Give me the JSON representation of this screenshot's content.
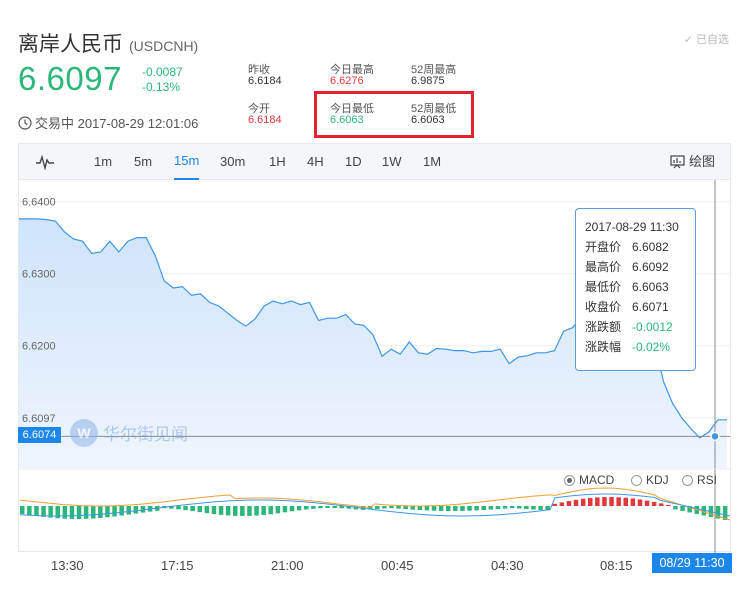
{
  "header": {
    "name": "离岸人民币",
    "code": "(USDCNH)",
    "price": "6.6097",
    "change": "-0.0087",
    "change_pct": "-0.13%",
    "status": "交易中 2017-08-29 12:01:06",
    "self_select": "已自选"
  },
  "stats": {
    "prev_close_label": "昨收",
    "prev_close": "6.6184",
    "open_label": "今开",
    "open": "6.6184",
    "day_high_label": "今日最高",
    "day_high": "6.6276",
    "day_low_label": "今日最低",
    "day_low": "6.6063",
    "w52_high_label": "52周最高",
    "w52_high": "6.9875",
    "w52_low_label": "52周最低",
    "w52_low": "6.6063"
  },
  "toolbar": {
    "intervals": [
      "1m",
      "5m",
      "15m",
      "30m",
      "1H",
      "4H",
      "1D",
      "1W",
      "1M"
    ],
    "active": "15m",
    "draw_label": "绘图"
  },
  "tooltip": {
    "time": "2017-08-29 11:30",
    "open_label": "开盘价",
    "open": "6.6082",
    "high_label": "最高价",
    "high": "6.6092",
    "low_label": "最低价",
    "low": "6.6063",
    "close_label": "收盘价",
    "close": "6.6071",
    "chg_label": "涨跌额",
    "chg": "-0.0012",
    "pct_label": "涨跌幅",
    "pct": "-0.02%"
  },
  "indicators": {
    "macd": "MACD",
    "kdj": "KDJ",
    "rsi": "RSI",
    "selected": "MACD"
  },
  "watermark": "华尔街见闻",
  "crosshair_price": "6.6074",
  "crosshair_time": "08/29 11:30",
  "colors": {
    "up": "#e0393c",
    "down": "#2bb67a",
    "accent": "#1c86ea",
    "highlight": "#e3232d"
  },
  "chart_data": {
    "type": "area",
    "y_ticks": [
      "6.6400",
      "6.6300",
      "6.6200"
    ],
    "overlap_label": "6.6097",
    "ylim": [
      6.603,
      6.643
    ],
    "x_ticks": [
      "13:30",
      "17:15",
      "21:00",
      "00:45",
      "04:30",
      "08:15"
    ],
    "series": [
      {
        "values": [
          6.6376,
          6.6376,
          6.6376,
          6.6375,
          6.6373,
          6.6358,
          6.6348,
          6.6345,
          6.6328,
          6.633,
          6.6345,
          6.633,
          6.6345,
          6.635,
          6.635,
          6.6325,
          6.629,
          6.628,
          6.6282,
          6.627,
          6.6272,
          6.626,
          6.6255,
          6.6245,
          6.6235,
          6.6227,
          6.6237,
          6.6255,
          6.6262,
          6.6258,
          6.6262,
          6.6257,
          6.626,
          6.6235,
          6.6238,
          6.6238,
          6.6243,
          6.623,
          6.6228,
          6.6215,
          6.6185,
          6.6195,
          6.6188,
          6.6205,
          6.619,
          6.6188,
          6.6196,
          6.6195,
          6.6193,
          6.6193,
          6.619,
          6.6192,
          6.6192,
          6.6195,
          6.6175,
          6.6184,
          6.6186,
          6.619,
          6.619,
          6.6193,
          6.622,
          6.6225,
          6.624,
          6.6275,
          6.632,
          6.634,
          6.6347,
          6.633,
          6.63,
          6.624,
          6.6205,
          6.615,
          6.612,
          6.61,
          6.6085,
          6.6072,
          6.608,
          6.6097,
          6.6097
        ]
      }
    ]
  }
}
